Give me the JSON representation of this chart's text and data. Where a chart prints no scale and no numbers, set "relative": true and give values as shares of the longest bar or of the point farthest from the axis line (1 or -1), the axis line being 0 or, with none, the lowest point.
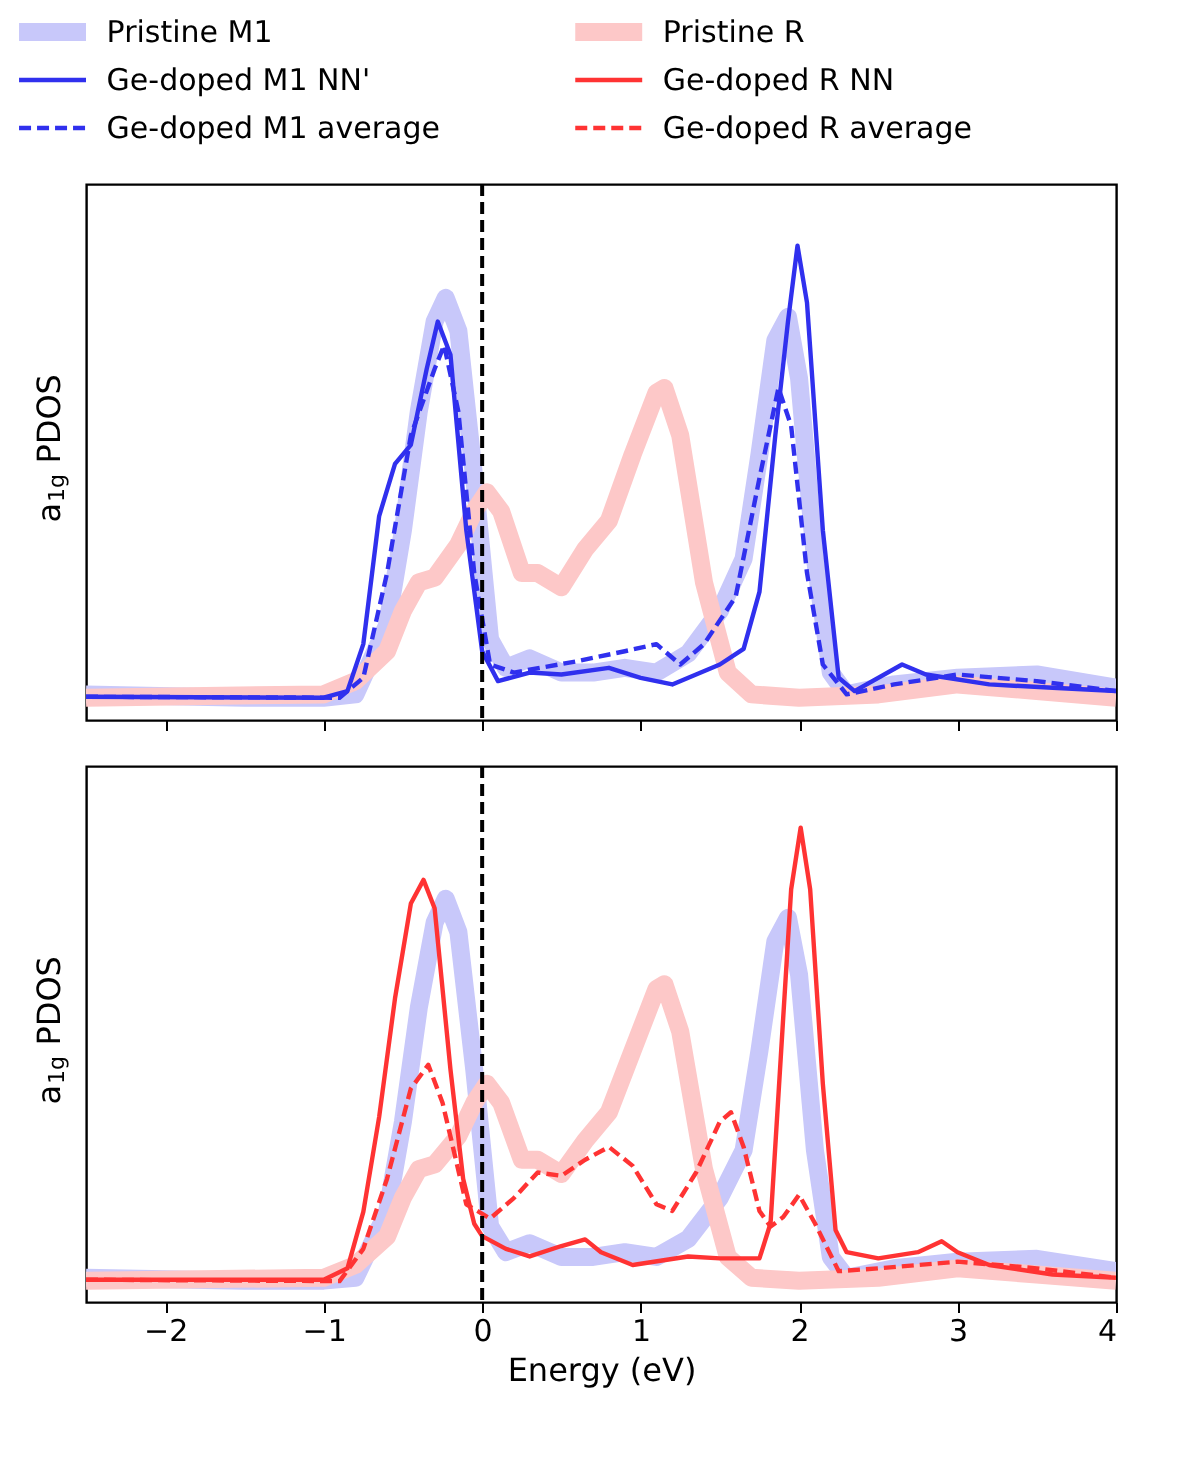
{
  "chart_data": [
    {
      "type": "line",
      "relative": true,
      "ylabel": "a$_{1g}$ PDOS",
      "xlim": [
        -2.5,
        4
      ],
      "xticks": [
        -2,
        -1,
        0,
        1,
        2,
        3,
        4
      ],
      "tick_labels": false,
      "legend": "top",
      "grid": false,
      "series": [
        {
          "name": "Pristine M1",
          "color": "#c8c8fa",
          "x": [
            -2.5,
            -1.5,
            -1.0,
            -0.8,
            -0.6,
            -0.5,
            -0.4,
            -0.3,
            -0.23,
            -0.15,
            -0.05,
            0.05,
            0.15,
            0.3,
            0.5,
            0.7,
            0.9,
            1.1,
            1.3,
            1.5,
            1.65,
            1.75,
            1.85,
            1.93,
            2.0,
            2.1,
            2.2,
            2.3,
            2.6,
            3.0,
            3.5,
            4.0
          ],
          "values": [
            0.054,
            0.047,
            0.047,
            0.054,
            0.2,
            0.4,
            0.65,
            0.84,
            0.89,
            0.82,
            0.51,
            0.17,
            0.11,
            0.13,
            0.1,
            0.1,
            0.11,
            0.1,
            0.14,
            0.23,
            0.34,
            0.56,
            0.8,
            0.85,
            0.72,
            0.34,
            0.1,
            0.054,
            0.075,
            0.089,
            0.096,
            0.068
          ]
        },
        {
          "name": "Ge-doped M1 NN'",
          "color": "#3030ee",
          "line_style": "solid",
          "x": [
            -2.5,
            -1.0,
            -0.85,
            -0.75,
            -0.65,
            -0.55,
            -0.45,
            -0.35,
            -0.28,
            -0.2,
            -0.1,
            0,
            0.1,
            0.3,
            0.5,
            0.8,
            1.0,
            1.2,
            1.5,
            1.65,
            1.75,
            1.85,
            1.93,
            1.99,
            2.05,
            2.15,
            2.25,
            2.35,
            2.65,
            2.8,
            3.2,
            3.6,
            4.0
          ],
          "values": [
            0.049,
            0.047,
            0.061,
            0.16,
            0.43,
            0.54,
            0.58,
            0.74,
            0.84,
            0.77,
            0.4,
            0.145,
            0.082,
            0.1,
            0.096,
            0.11,
            0.089,
            0.075,
            0.117,
            0.15,
            0.27,
            0.6,
            0.84,
            1.0,
            0.88,
            0.4,
            0.089,
            0.061,
            0.117,
            0.096,
            0.075,
            0.068,
            0.061
          ]
        },
        {
          "name": "Ge-doped M1 average",
          "color": "#3030ee",
          "line_style": "dashed",
          "x": [
            -2.5,
            -0.9,
            -0.75,
            -0.6,
            -0.45,
            -0.3,
            -0.24,
            -0.15,
            -0.05,
            0.05,
            0.2,
            0.6,
            0.9,
            1.1,
            1.25,
            1.4,
            1.6,
            1.75,
            1.87,
            1.95,
            2.05,
            2.15,
            2.3,
            2.6,
            3.0,
            3.5,
            4.0
          ],
          "values": [
            0.049,
            0.047,
            0.089,
            0.31,
            0.6,
            0.74,
            0.79,
            0.65,
            0.31,
            0.117,
            0.1,
            0.124,
            0.145,
            0.16,
            0.117,
            0.16,
            0.26,
            0.51,
            0.7,
            0.62,
            0.31,
            0.117,
            0.054,
            0.075,
            0.096,
            0.082,
            0.061
          ]
        },
        {
          "name": "Pristine R",
          "color": "#fdc8c8",
          "x": [
            -2.5,
            -1.0,
            -0.8,
            -0.6,
            -0.5,
            -0.4,
            -0.3,
            -0.15,
            -0.05,
            0.03,
            0.12,
            0.25,
            0.35,
            0.5,
            0.65,
            0.8,
            0.95,
            1.1,
            1.15,
            1.25,
            1.4,
            1.55,
            1.7,
            2.0,
            2.5,
            3.0,
            3.5,
            4.0
          ],
          "values": [
            0.047,
            0.054,
            0.082,
            0.145,
            0.23,
            0.29,
            0.3,
            0.37,
            0.44,
            0.48,
            0.44,
            0.31,
            0.31,
            0.28,
            0.36,
            0.42,
            0.56,
            0.69,
            0.7,
            0.6,
            0.29,
            0.1,
            0.054,
            0.047,
            0.054,
            0.075,
            0.061,
            0.047
          ]
        }
      ],
      "ref_lines": [
        {
          "axis": "x",
          "value": 0,
          "color": "#000000",
          "line_style": "dashed"
        }
      ]
    },
    {
      "type": "line",
      "relative": true,
      "ylabel": "a$_{1g}$ PDOS",
      "xlabel": "Energy (eV)",
      "xlim": [
        -2.5,
        4
      ],
      "xticks": [
        {
          "value": -2,
          "label": "−2"
        },
        {
          "value": -1,
          "label": "−1"
        },
        0,
        1,
        2,
        3,
        4
      ],
      "tick_labels": "x",
      "legend": "top",
      "grid": false,
      "series": [
        {
          "name": "Pristine M1",
          "color": "#c8c8fa",
          "x": [
            -2.5,
            -1.5,
            -1.0,
            -0.8,
            -0.6,
            -0.5,
            -0.4,
            -0.3,
            -0.23,
            -0.15,
            -0.05,
            0.05,
            0.15,
            0.3,
            0.5,
            0.7,
            0.9,
            1.1,
            1.3,
            1.5,
            1.65,
            1.75,
            1.85,
            1.93,
            2.0,
            2.1,
            2.2,
            2.3,
            2.6,
            3.0,
            3.5,
            4.0
          ],
          "values": [
            0.051,
            0.045,
            0.045,
            0.051,
            0.19,
            0.38,
            0.62,
            0.8,
            0.85,
            0.78,
            0.49,
            0.16,
            0.105,
            0.124,
            0.095,
            0.095,
            0.105,
            0.095,
            0.133,
            0.22,
            0.32,
            0.53,
            0.76,
            0.81,
            0.69,
            0.32,
            0.095,
            0.051,
            0.071,
            0.085,
            0.091,
            0.065
          ]
        },
        {
          "name": "Pristine R",
          "color": "#fdc8c8",
          "x": [
            -2.5,
            -1.0,
            -0.8,
            -0.6,
            -0.5,
            -0.4,
            -0.3,
            -0.15,
            -0.05,
            0.03,
            0.12,
            0.25,
            0.35,
            0.5,
            0.65,
            0.8,
            0.95,
            1.1,
            1.15,
            1.25,
            1.4,
            1.55,
            1.7,
            2.0,
            2.5,
            3.0,
            3.5,
            4.0
          ],
          "values": [
            0.045,
            0.051,
            0.078,
            0.138,
            0.22,
            0.28,
            0.29,
            0.35,
            0.42,
            0.46,
            0.42,
            0.3,
            0.3,
            0.27,
            0.34,
            0.4,
            0.53,
            0.66,
            0.67,
            0.57,
            0.28,
            0.095,
            0.051,
            0.045,
            0.051,
            0.071,
            0.058,
            0.045
          ]
        },
        {
          "name": "Ge-doped R NN",
          "color": "#ff3333",
          "line_style": "solid",
          "x": [
            -2.5,
            -1.0,
            -0.85,
            -0.75,
            -0.65,
            -0.55,
            -0.45,
            -0.37,
            -0.3,
            -0.2,
            -0.12,
            -0.05,
            0,
            0.15,
            0.3,
            0.5,
            0.65,
            0.75,
            0.95,
            1.3,
            1.5,
            1.75,
            1.82,
            1.9,
            1.95,
            2.01,
            2.07,
            2.15,
            2.23,
            2.3,
            2.5,
            2.75,
            2.9,
            3.0,
            3.2,
            3.6,
            4.0
          ],
          "values": [
            0.047,
            0.047,
            0.071,
            0.19,
            0.39,
            0.64,
            0.84,
            0.89,
            0.83,
            0.49,
            0.26,
            0.165,
            0.139,
            0.112,
            0.096,
            0.118,
            0.132,
            0.105,
            0.078,
            0.096,
            0.092,
            0.092,
            0.166,
            0.6,
            0.87,
            1.0,
            0.87,
            0.46,
            0.152,
            0.105,
            0.092,
            0.105,
            0.128,
            0.105,
            0.078,
            0.058,
            0.051
          ]
        },
        {
          "name": "Ge-doped R average",
          "color": "#ff3333",
          "line_style": "dashed",
          "x": [
            -2.5,
            -0.9,
            -0.75,
            -0.6,
            -0.45,
            -0.34,
            -0.25,
            -0.1,
            0.05,
            0.2,
            0.35,
            0.5,
            0.65,
            0.8,
            0.95,
            1.1,
            1.2,
            1.35,
            1.5,
            1.57,
            1.65,
            1.75,
            1.82,
            1.9,
            2.0,
            2.1,
            2.25,
            2.5,
            3.0,
            3.5,
            4.0
          ],
          "values": [
            0.047,
            0.044,
            0.112,
            0.26,
            0.45,
            0.5,
            0.42,
            0.206,
            0.176,
            0.219,
            0.273,
            0.266,
            0.3,
            0.327,
            0.287,
            0.206,
            0.192,
            0.273,
            0.38,
            0.4,
            0.327,
            0.192,
            0.159,
            0.179,
            0.226,
            0.166,
            0.065,
            0.071,
            0.085,
            0.071,
            0.051
          ]
        }
      ],
      "ref_lines": [
        {
          "axis": "x",
          "value": 0,
          "color": "#000000",
          "line_style": "dashed"
        }
      ]
    }
  ]
}
